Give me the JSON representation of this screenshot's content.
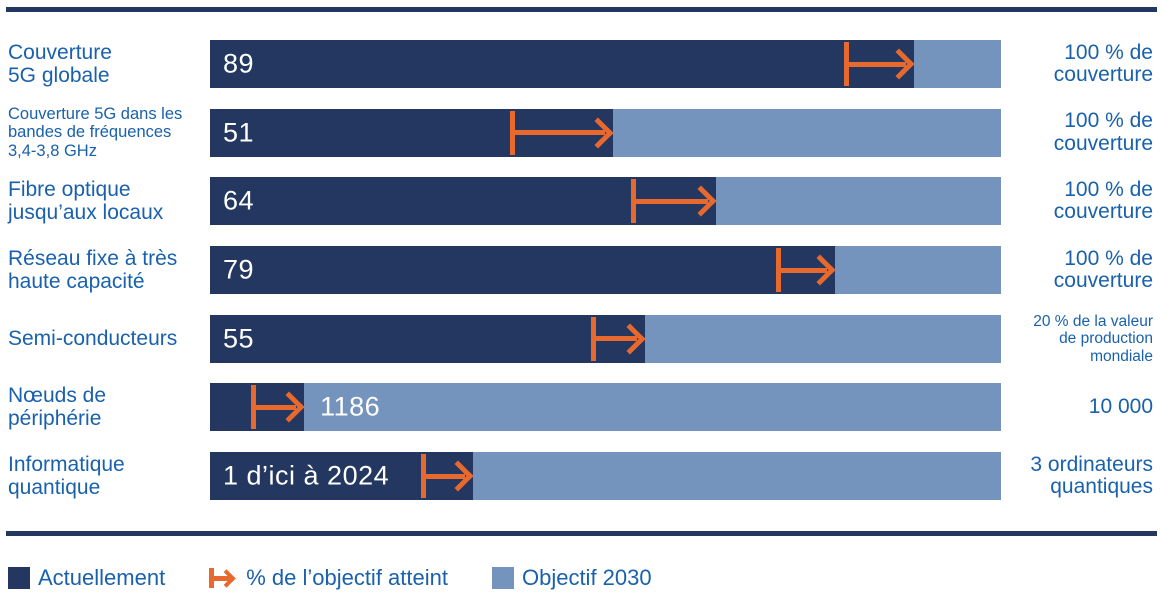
{
  "colors": {
    "navy": "#233760",
    "light_blue": "#7494BE",
    "orange": "#E8692D",
    "label_blue": "#1961AC",
    "background": "#FFFFFF",
    "value_text": "#FFFFFF"
  },
  "chart_data": {
    "type": "bar",
    "orientation": "horizontal",
    "description": "Progression vers les objectifs numériques 2030 : barre bleu foncé = valeur actuelle, barre bleu clair = objectif 2030, flèche orange = % de l'objectif atteint",
    "xlim_pct": [
      0,
      100
    ],
    "grid": false,
    "legend_position": "bottom-left",
    "legend": [
      {
        "swatch": "navy-square",
        "label": "Actuellement"
      },
      {
        "swatch": "orange-arrow",
        "label": "% de l’objectif atteint"
      },
      {
        "swatch": "lightblue-square",
        "label": "Objectif 2030"
      }
    ],
    "rows": [
      {
        "label_lines": [
          "Couverture",
          "5G globale"
        ],
        "label_small": false,
        "value_label": "89",
        "value_num": 89,
        "current_pct": 89,
        "arrow_from_pct": 80.4,
        "arrow_to_pct": 89,
        "value_after_arrow": false,
        "target_lines": [
          "100 % de",
          "couverture"
        ],
        "target_small": false
      },
      {
        "label_lines": [
          "Couverture 5G dans les",
          "bandes de fréquences",
          "3,4-3,8 GHz"
        ],
        "label_small": true,
        "value_label": "51",
        "value_num": 51,
        "current_pct": 51,
        "arrow_from_pct": 38.2,
        "arrow_to_pct": 51,
        "value_after_arrow": false,
        "target_lines": [
          "100 % de",
          "couverture"
        ],
        "target_small": false
      },
      {
        "label_lines": [
          "Fibre optique",
          "jusqu’aux locaux"
        ],
        "label_small": false,
        "value_label": "64",
        "value_num": 64,
        "current_pct": 64,
        "arrow_from_pct": 53.5,
        "arrow_to_pct": 64,
        "value_after_arrow": false,
        "target_lines": [
          "100 % de",
          "couverture"
        ],
        "target_small": false
      },
      {
        "label_lines": [
          "Réseau fixe à très",
          "haute capacité"
        ],
        "label_small": false,
        "value_label": "79",
        "value_num": 79,
        "current_pct": 79,
        "arrow_from_pct": 71.8,
        "arrow_to_pct": 79,
        "value_after_arrow": false,
        "target_lines": [
          "100 % de",
          "couverture"
        ],
        "target_small": false
      },
      {
        "label_lines": [
          "Semi-conducteurs"
        ],
        "label_small": false,
        "value_label": "55",
        "value_num": 55,
        "current_pct": 55,
        "arrow_from_pct": 48.4,
        "arrow_to_pct": 55,
        "value_after_arrow": false,
        "target_lines": [
          "20 % de la valeur",
          "de production",
          "mondiale"
        ],
        "target_small": true
      },
      {
        "label_lines": [
          "Nœuds de",
          "périphérie"
        ],
        "label_small": false,
        "value_label": "1186",
        "value_num": 1186,
        "current_pct": 11.9,
        "arrow_from_pct": 5.4,
        "arrow_to_pct": 11.9,
        "value_after_arrow": true,
        "target_lines": [
          "10 000"
        ],
        "target_small": false
      },
      {
        "label_lines": [
          "Informatique",
          "quantique"
        ],
        "label_small": false,
        "value_label": "1 d’ici à 2024",
        "value_num": 1,
        "current_pct": 33.3,
        "arrow_from_pct": 26.9,
        "arrow_to_pct": 33.3,
        "value_after_arrow": false,
        "target_lines": [
          "3 ordinateurs",
          "quantiques"
        ],
        "target_small": false
      }
    ]
  }
}
